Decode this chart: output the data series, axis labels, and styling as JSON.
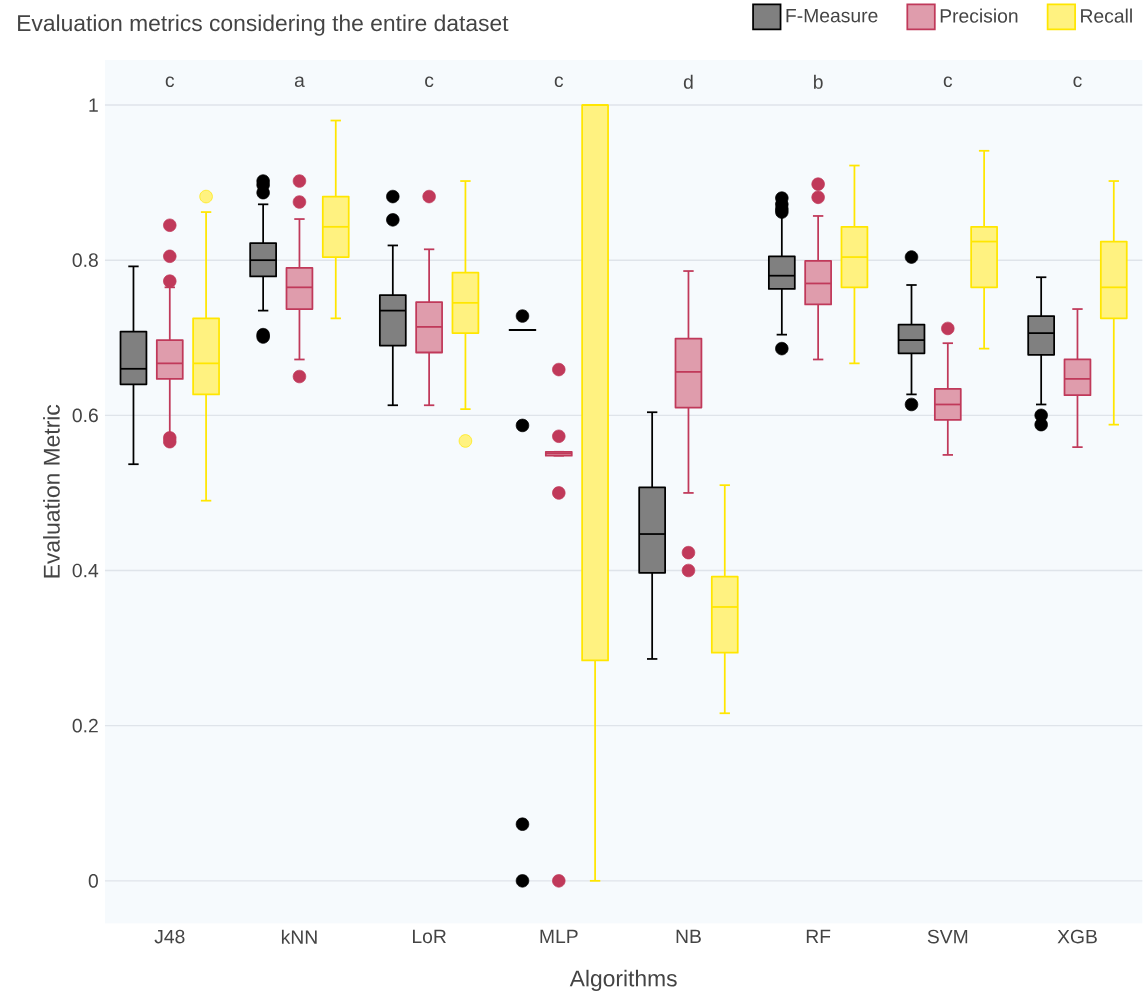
{
  "chart_data": {
    "type": "box",
    "title": "Evaluation metrics considering the entire dataset",
    "xlabel": "Algorithms",
    "ylabel": "Evaluation Metric",
    "categories": [
      "J48",
      "kNN",
      "LoR",
      "MLP",
      "NB",
      "RF",
      "SVM",
      "XGB"
    ],
    "ylim": [
      -0.055,
      1.058
    ],
    "yticks": [
      0,
      0.2,
      0.4,
      0.6,
      0.8,
      1
    ],
    "grid": "y",
    "legend": "top right",
    "annotations": [
      "c",
      "a",
      "c",
      "c",
      "d",
      "b",
      "c",
      "c"
    ],
    "series": [
      {
        "name": "F-Measure",
        "color": "#000000",
        "boxes": [
          {
            "low": 0.537,
            "q1": 0.64,
            "median": 0.66,
            "q3": 0.708,
            "high": 0.792
          },
          {
            "low": 0.735,
            "q1": 0.779,
            "median": 0.8,
            "q3": 0.822,
            "high": 0.872,
            "outliers": [
              0.902,
              0.897,
              0.887,
              0.704,
              0.701
            ]
          },
          {
            "low": 0.613,
            "q1": 0.69,
            "median": 0.735,
            "q3": 0.755,
            "high": 0.819,
            "outliers": [
              0.882,
              0.852
            ]
          },
          {
            "low": 0.71,
            "q1": 0.71,
            "median": 0.71,
            "q3": 0.71,
            "high": 0.71,
            "outliers": [
              0.728,
              0.587,
              0.073,
              0
            ]
          },
          {
            "low": 0.286,
            "q1": 0.397,
            "median": 0.447,
            "q3": 0.507,
            "high": 0.604
          },
          {
            "low": 0.704,
            "q1": 0.763,
            "median": 0.78,
            "q3": 0.805,
            "high": 0.858,
            "outliers": [
              0.88,
              0.872,
              0.866,
              0.862,
              0.686
            ]
          },
          {
            "low": 0.627,
            "q1": 0.68,
            "median": 0.697,
            "q3": 0.717,
            "high": 0.768,
            "outliers": [
              0.804,
              0.614
            ]
          },
          {
            "low": 0.614,
            "q1": 0.678,
            "median": 0.706,
            "q3": 0.728,
            "high": 0.778,
            "outliers": [
              0.6,
              0.588
            ]
          }
        ]
      },
      {
        "name": "Precision",
        "color": "#c0395a",
        "boxes": [
          {
            "low": 0.575,
            "q1": 0.647,
            "median": 0.667,
            "q3": 0.697,
            "high": 0.765,
            "outliers": [
              0.845,
              0.805,
              0.773,
              0.571,
              0.566
            ]
          },
          {
            "low": 0.672,
            "q1": 0.737,
            "median": 0.765,
            "q3": 0.79,
            "high": 0.853,
            "outliers": [
              0.902,
              0.875,
              0.65
            ]
          },
          {
            "low": 0.613,
            "q1": 0.681,
            "median": 0.714,
            "q3": 0.746,
            "high": 0.814,
            "outliers": [
              0.882
            ]
          },
          {
            "low": 0.548,
            "q1": 0.548,
            "median": 0.551,
            "q3": 0.553,
            "high": 0.553,
            "outliers": [
              0.659,
              0.573,
              0.5,
              0
            ]
          },
          {
            "low": 0.5,
            "q1": 0.61,
            "median": 0.656,
            "q3": 0.699,
            "high": 0.786,
            "outliers": [
              0.423,
              0.4
            ]
          },
          {
            "low": 0.672,
            "q1": 0.743,
            "median": 0.77,
            "q3": 0.799,
            "high": 0.857,
            "outliers": [
              0.898,
              0.881
            ]
          },
          {
            "low": 0.549,
            "q1": 0.594,
            "median": 0.614,
            "q3": 0.634,
            "high": 0.693,
            "outliers": [
              0.712
            ]
          },
          {
            "low": 0.559,
            "q1": 0.626,
            "median": 0.647,
            "q3": 0.672,
            "high": 0.737
          }
        ]
      },
      {
        "name": "Recall",
        "color": "#ffe600",
        "boxes": [
          {
            "low": 0.49,
            "q1": 0.627,
            "median": 0.667,
            "q3": 0.725,
            "high": 0.862,
            "outliers": [
              0.882
            ]
          },
          {
            "low": 0.725,
            "q1": 0.804,
            "median": 0.843,
            "q3": 0.882,
            "high": 0.98
          },
          {
            "low": 0.608,
            "q1": 0.706,
            "median": 0.745,
            "q3": 0.784,
            "high": 0.902,
            "outliers": [
              0.567
            ]
          },
          {
            "low": 0,
            "q1": 0.284,
            "median": 1,
            "q3": 1,
            "high": 1
          },
          {
            "low": 0.216,
            "q1": 0.294,
            "median": 0.353,
            "q3": 0.392,
            "high": 0.51
          },
          {
            "low": 0.667,
            "q1": 0.765,
            "median": 0.804,
            "q3": 0.843,
            "high": 0.922
          },
          {
            "low": 0.686,
            "q1": 0.765,
            "median": 0.824,
            "q3": 0.843,
            "high": 0.941
          },
          {
            "low": 0.588,
            "q1": 0.725,
            "median": 0.765,
            "q3": 0.824,
            "high": 0.902
          }
        ]
      }
    ]
  }
}
